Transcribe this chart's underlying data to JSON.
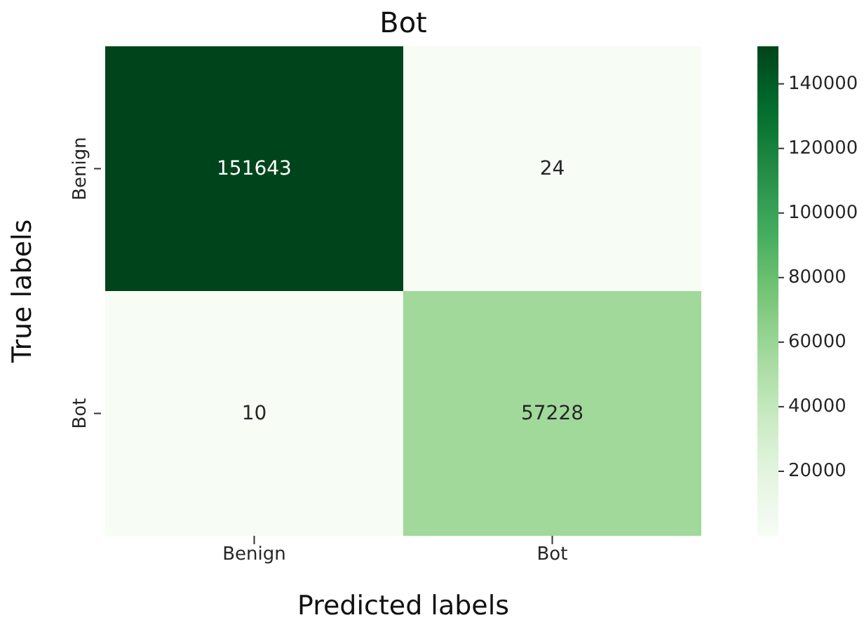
{
  "chart_data": {
    "type": "heatmap",
    "title": "Bot",
    "xlabel": "Predicted labels",
    "ylabel": "True labels",
    "categories": [
      "Benign",
      "Bot"
    ],
    "y_categories": [
      "Benign",
      "Bot"
    ],
    "cells": [
      [
        151643,
        24
      ],
      [
        10,
        57228
      ]
    ],
    "clim": [
      10,
      151643
    ],
    "cticks": [
      20000,
      40000,
      60000,
      80000,
      100000,
      120000,
      140000
    ],
    "data_labels": true
  }
}
